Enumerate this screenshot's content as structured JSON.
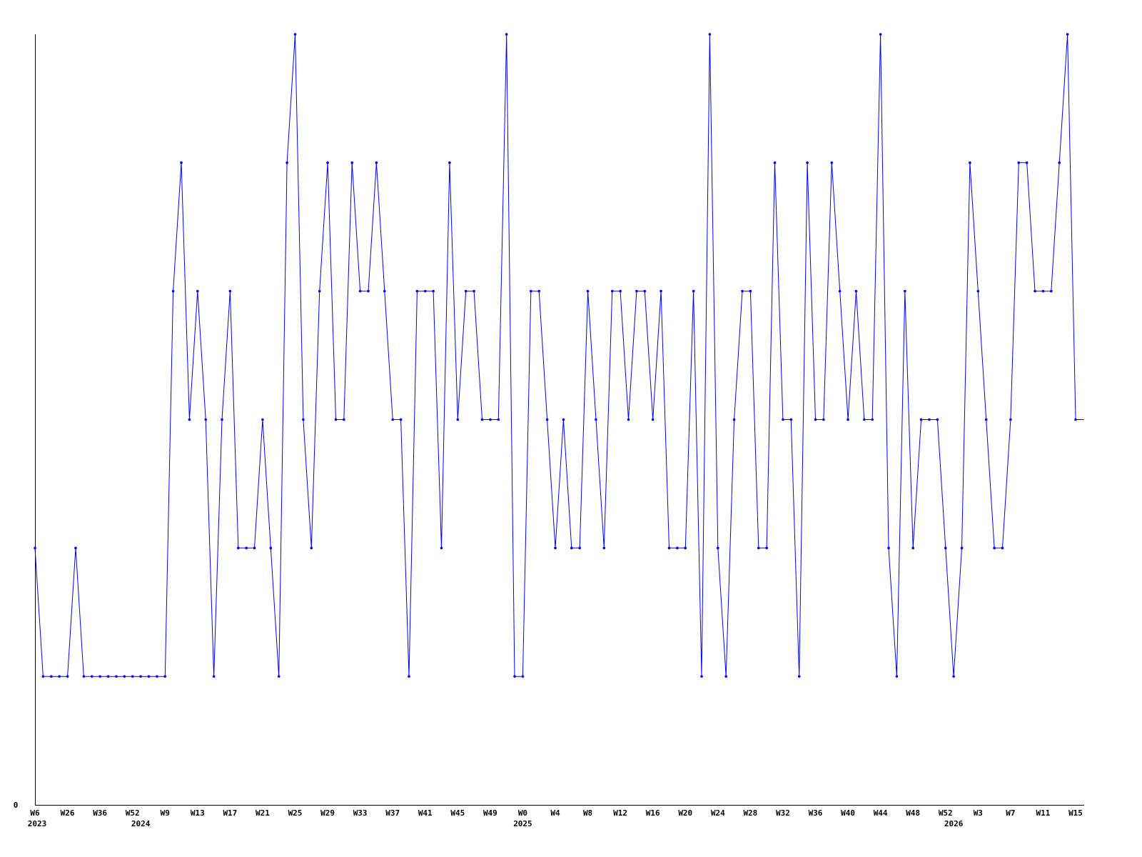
{
  "chart_data": {
    "type": "line",
    "title": "",
    "xlabel": "",
    "ylabel": "",
    "ylim": [
      0,
      6
    ],
    "y_tick_labels": [
      {
        "value": 0,
        "label": "0"
      }
    ],
    "grid": false,
    "legend": "none",
    "line_color": "#0000ff",
    "axis_color": "#000000",
    "markers": "small dots",
    "values": [
      2,
      1,
      1,
      1,
      1,
      2,
      1,
      1,
      1,
      1,
      1,
      1,
      1,
      1,
      1,
      1,
      1,
      4,
      5,
      3,
      4,
      3,
      1,
      3,
      4,
      2,
      2,
      2,
      3,
      2,
      1,
      5,
      6,
      3,
      2,
      4,
      5,
      3,
      3,
      5,
      4,
      4,
      5,
      4,
      3,
      3,
      1,
      4,
      4,
      4,
      2,
      5,
      3,
      4,
      4,
      3,
      3,
      3,
      6,
      1,
      1,
      4,
      4,
      3,
      2,
      3,
      2,
      2,
      4,
      3,
      2,
      4,
      4,
      3,
      4,
      4,
      3,
      4,
      2,
      2,
      2,
      4,
      1,
      6,
      2,
      1,
      3,
      4,
      4,
      2,
      2,
      5,
      3,
      3,
      1,
      5,
      3,
      3,
      5,
      4,
      3,
      4,
      3,
      3,
      6,
      2,
      1,
      4,
      2,
      3,
      3,
      3,
      2,
      1,
      2,
      5,
      4,
      3,
      2,
      2,
      3,
      5,
      5,
      4,
      4,
      4,
      5,
      6,
      3
    ],
    "x_tick_labels": [
      {
        "index": 0,
        "label": "W6"
      },
      {
        "index": 4,
        "label": "W26"
      },
      {
        "index": 8,
        "label": "W36"
      },
      {
        "index": 12,
        "label": "W52"
      },
      {
        "index": 16,
        "label": "W9"
      },
      {
        "index": 20,
        "label": "W13"
      },
      {
        "index": 24,
        "label": "W17"
      },
      {
        "index": 28,
        "label": "W21"
      },
      {
        "index": 32,
        "label": "W25"
      },
      {
        "index": 36,
        "label": "W29"
      },
      {
        "index": 40,
        "label": "W33"
      },
      {
        "index": 44,
        "label": "W37"
      },
      {
        "index": 48,
        "label": "W41"
      },
      {
        "index": 52,
        "label": "W45"
      },
      {
        "index": 56,
        "label": "W49"
      },
      {
        "index": 60,
        "label": "W0"
      },
      {
        "index": 64,
        "label": "W4"
      },
      {
        "index": 68,
        "label": "W8"
      },
      {
        "index": 72,
        "label": "W12"
      },
      {
        "index": 76,
        "label": "W16"
      },
      {
        "index": 80,
        "label": "W20"
      },
      {
        "index": 84,
        "label": "W24"
      },
      {
        "index": 88,
        "label": "W28"
      },
      {
        "index": 92,
        "label": "W32"
      },
      {
        "index": 96,
        "label": "W36"
      },
      {
        "index": 100,
        "label": "W40"
      },
      {
        "index": 104,
        "label": "W44"
      },
      {
        "index": 108,
        "label": "W48"
      },
      {
        "index": 112,
        "label": "W52"
      },
      {
        "index": 116,
        "label": "W3"
      },
      {
        "index": 120,
        "label": "W7"
      },
      {
        "index": 124,
        "label": "W11"
      },
      {
        "index": 128,
        "label": "W15"
      }
    ],
    "year_labels": [
      {
        "index": 0,
        "label": "2023"
      },
      {
        "index": 13,
        "label": "2024"
      },
      {
        "index": 60,
        "label": "2025"
      },
      {
        "index": 113,
        "label": "2026"
      }
    ]
  }
}
